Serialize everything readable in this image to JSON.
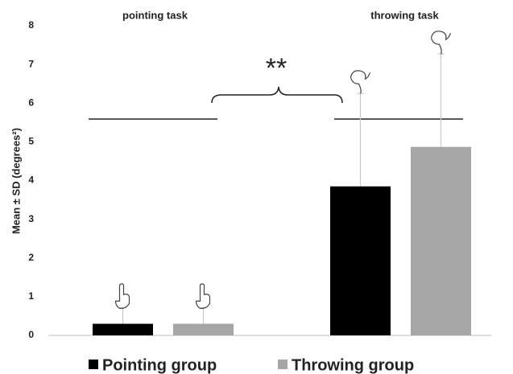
{
  "chart_data": {
    "type": "bar",
    "categories": [
      "pointing task",
      "throwing task"
    ],
    "y_label": "Mean ± SD (degrees²)",
    "series": [
      {
        "name": "Pointing group",
        "color": "#000000",
        "values": [
          0.3,
          3.85
        ],
        "errors": [
          0.42,
          2.4
        ]
      },
      {
        "name": "Throwing group",
        "color": "#a6a6a6",
        "values": [
          0.3,
          4.87
        ],
        "errors": [
          0.42,
          2.4
        ]
      }
    ],
    "annotation": "**",
    "ylim": [
      0,
      8
    ],
    "yticks": [
      0,
      1,
      2,
      3,
      4,
      5,
      6,
      7,
      8
    ],
    "grid": false
  }
}
